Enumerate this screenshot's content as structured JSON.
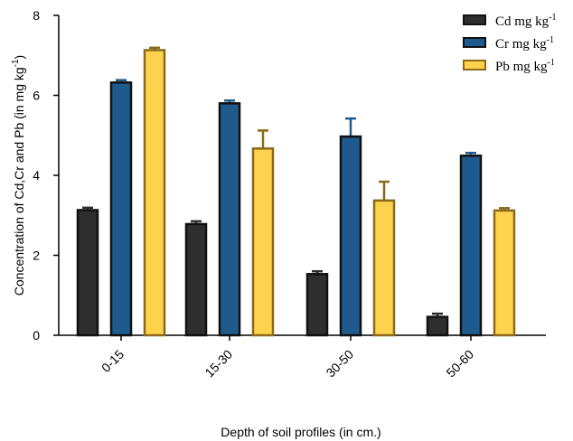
{
  "chart_data": {
    "type": "bar",
    "categories": [
      "0-15",
      "15-30",
      "30-50",
      "50-60"
    ],
    "series": [
      {
        "name": "Cd mg kg",
        "name_sup": "-1",
        "color": "#2e2e2e",
        "values": [
          3.13,
          2.78,
          1.53,
          0.46
        ],
        "errors": [
          0.06,
          0.07,
          0.07,
          0.08
        ]
      },
      {
        "name": "Cr mg kg",
        "name_sup": "-1",
        "color": "#1e5a8c",
        "values": [
          6.32,
          5.8,
          4.97,
          4.49
        ],
        "errors": [
          0.06,
          0.07,
          0.45,
          0.07
        ]
      },
      {
        "name": "Pb mg kg",
        "name_sup": "-1",
        "color": "#ffd24d",
        "values": [
          7.13,
          4.67,
          3.37,
          3.12
        ],
        "errors": [
          0.06,
          0.45,
          0.47,
          0.06
        ]
      }
    ],
    "error_colors": [
      "#2e2e2e",
      "#1e5a8c",
      "#8a6a1a"
    ],
    "xlabel": "Depth of soil profiles (in cm.)",
    "ylabel": "Concentration of Cd,Cr and Pb (in mg kg",
    "ylabel_sup": "-1",
    "ylabel_close": ")",
    "ylim": [
      0,
      8
    ],
    "yticks": [
      0,
      2,
      4,
      6,
      8
    ],
    "grid": false,
    "legend_position": "top-right"
  }
}
